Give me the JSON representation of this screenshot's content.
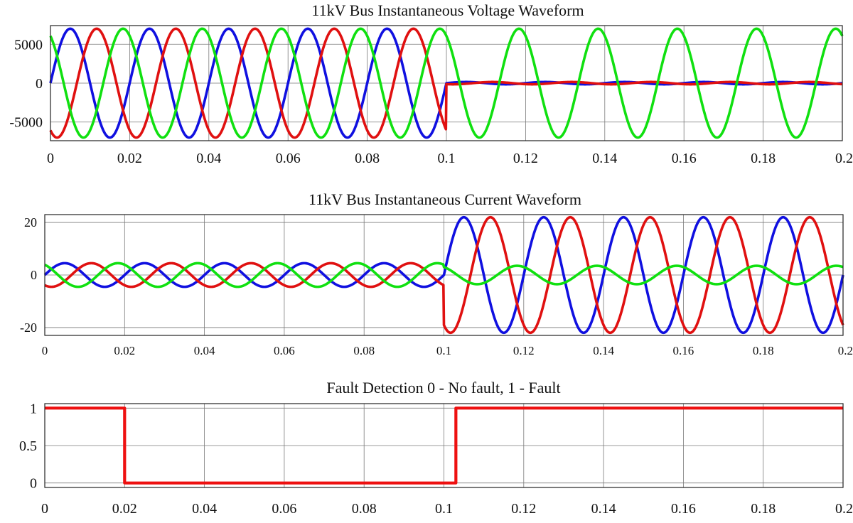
{
  "chart_data": [
    {
      "type": "line",
      "title": "11kV Bus Instantaneous Voltage Waveform",
      "xlabel": "",
      "ylabel": "",
      "xlim": [
        0,
        0.2
      ],
      "ylim": [
        -7400,
        7400
      ],
      "grid": true,
      "x_ticks": [
        "0",
        "0.02",
        "0.04",
        "0.06",
        "0.08",
        "0.1",
        "0.12",
        "0.14",
        "0.16",
        "0.18",
        "0.2"
      ],
      "y_ticks": [
        {
          "value": 5000,
          "label": "5000"
        },
        {
          "value": 0,
          "label": "0"
        },
        {
          "value": -5000,
          "label": "-5000"
        }
      ],
      "series": [
        {
          "color": "#1010e0",
          "phase_deg": 0,
          "frequency_hz": 50,
          "description_values": {
            "pre_fault_amplitude": 7000,
            "post_fault_amplitude": 150,
            "fault_time": 0.1
          }
        },
        {
          "color": "#e01010",
          "phase_deg": -120,
          "frequency_hz": 50,
          "description_values": {
            "pre_fault_amplitude": 7000,
            "post_fault_amplitude": 150,
            "fault_time": 0.1
          }
        },
        {
          "color": "#10e010",
          "phase_deg": 120,
          "frequency_hz": 50,
          "description_values": {
            "pre_fault_amplitude": 7000,
            "post_fault_amplitude": 7000,
            "fault_time": 0.1
          }
        }
      ]
    },
    {
      "type": "line",
      "title": "11kV Bus Instantaneous Current Waveform",
      "xlabel": "",
      "ylabel": "",
      "xlim": [
        0,
        0.2
      ],
      "ylim": [
        -23,
        23
      ],
      "grid": true,
      "x_ticks": [
        "0",
        "0.02",
        "0.04",
        "0.06",
        "0.08",
        "0.1",
        "0.12",
        "0.14",
        "0.16",
        "0.18",
        "0.2"
      ],
      "y_ticks": [
        {
          "value": 20,
          "label": "20"
        },
        {
          "value": 0,
          "label": "0"
        },
        {
          "value": -20,
          "label": "-20"
        }
      ],
      "series": [
        {
          "color": "#1010e0",
          "phase_deg": 0,
          "frequency_hz": 50,
          "description_values": {
            "pre_fault_amplitude": 4.5,
            "post_fault_amplitude": 22,
            "fault_time": 0.1
          }
        },
        {
          "color": "#e01010",
          "phase_deg": -120,
          "frequency_hz": 50,
          "description_values": {
            "pre_fault_amplitude": 4.5,
            "post_fault_amplitude": 22,
            "fault_time": 0.1
          }
        },
        {
          "color": "#10e010",
          "phase_deg": 120,
          "frequency_hz": 50,
          "description_values": {
            "pre_fault_amplitude": 4.5,
            "post_fault_amplitude": 3.5,
            "fault_time": 0.1
          }
        }
      ]
    },
    {
      "type": "line",
      "title": "Fault Detection 0 - No fault, 1 - Fault",
      "xlabel": "",
      "ylabel": "",
      "xlim": [
        0,
        0.2
      ],
      "ylim": [
        -0.06,
        1.06
      ],
      "grid": true,
      "x_ticks": [
        "0",
        "0.02",
        "0.04",
        "0.06",
        "0.08",
        "0.1",
        "0.12",
        "0.14",
        "0.16",
        "0.18",
        "0.2"
      ],
      "y_ticks": [
        {
          "value": 1,
          "label": "1"
        },
        {
          "value": 0.5,
          "label": "0.5"
        },
        {
          "value": 0,
          "label": "0"
        }
      ],
      "series": [
        {
          "color": "#ee1010",
          "x": [
            0,
            0.02,
            0.02,
            0.103,
            0.103,
            0.2
          ],
          "y": [
            1,
            1,
            0,
            0,
            1,
            1
          ]
        }
      ]
    }
  ]
}
